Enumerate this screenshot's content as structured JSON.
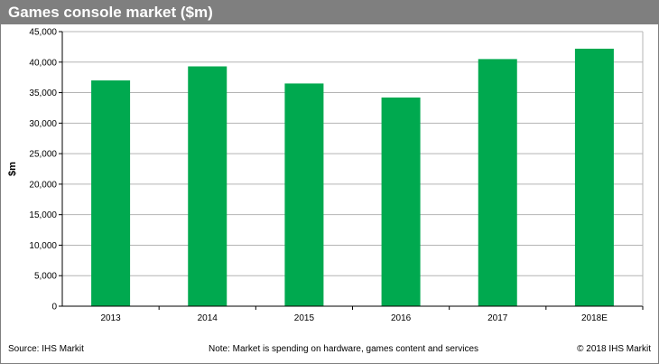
{
  "header": {
    "title": "Games console market ($m)"
  },
  "footer": {
    "source": "Source: IHS Markit",
    "note": "Note: Market is spending on hardware, games content and services",
    "copyright": "© 2018 IHS Markit"
  },
  "colors": {
    "bar": "#00a94f",
    "title_bar": "#7f7f7f",
    "grid": "#b4b4b4"
  },
  "chart_data": {
    "type": "bar",
    "title": "Games console market ($m)",
    "ylabel": "$m",
    "xlabel": "",
    "categories": [
      "2013",
      "2014",
      "2015",
      "2016",
      "2017",
      "2018E"
    ],
    "values": [
      37000,
      39300,
      36500,
      34200,
      40500,
      42200
    ],
    "ylim": [
      0,
      45000
    ],
    "yticks": [
      "0",
      "5,000",
      "10,000",
      "15,000",
      "20,000",
      "25,000",
      "30,000",
      "35,000",
      "40,000",
      "45,000"
    ],
    "grid": true,
    "legend": "none"
  }
}
